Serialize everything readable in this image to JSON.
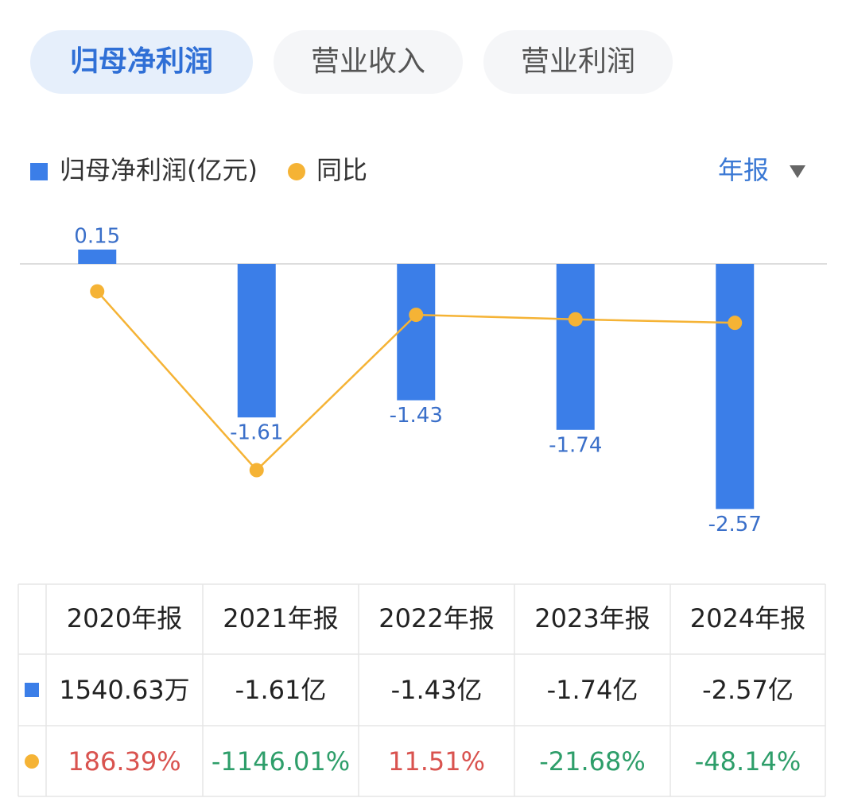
{
  "tabs": {
    "items": [
      "归母净利润",
      "营业收入",
      "营业利润"
    ],
    "active": 0
  },
  "period_selector": "年报",
  "chart_data": {
    "type": "bar-line",
    "categories": [
      "2020年报",
      "2021年报",
      "2022年报",
      "2023年报",
      "2024年报"
    ],
    "series": [
      {
        "name": "归母净利润(亿元)",
        "type": "bar",
        "color": "#3b7ee8",
        "values": [
          0.15,
          -1.61,
          -1.43,
          -1.74,
          -2.57
        ]
      },
      {
        "name": "同比",
        "type": "line",
        "color": "#f5b335",
        "axis": "y2",
        "values": [
          186.39,
          -1146.01,
          11.51,
          -21.68,
          -48.14
        ]
      }
    ],
    "ylim": [
      -2.9,
      0.35
    ],
    "y2lim": [
      -1670,
      640
    ]
  },
  "table": {
    "rows": [
      [
        "1540.63万",
        "-1.61亿",
        "-1.43亿",
        "-1.74亿",
        "-2.57亿"
      ],
      [
        "186.39%",
        "-1146.01%",
        "11.51%",
        "-21.68%",
        "-48.14%"
      ]
    ],
    "positive_color": "#d9534f",
    "negative_color": "#2e9e6a"
  }
}
